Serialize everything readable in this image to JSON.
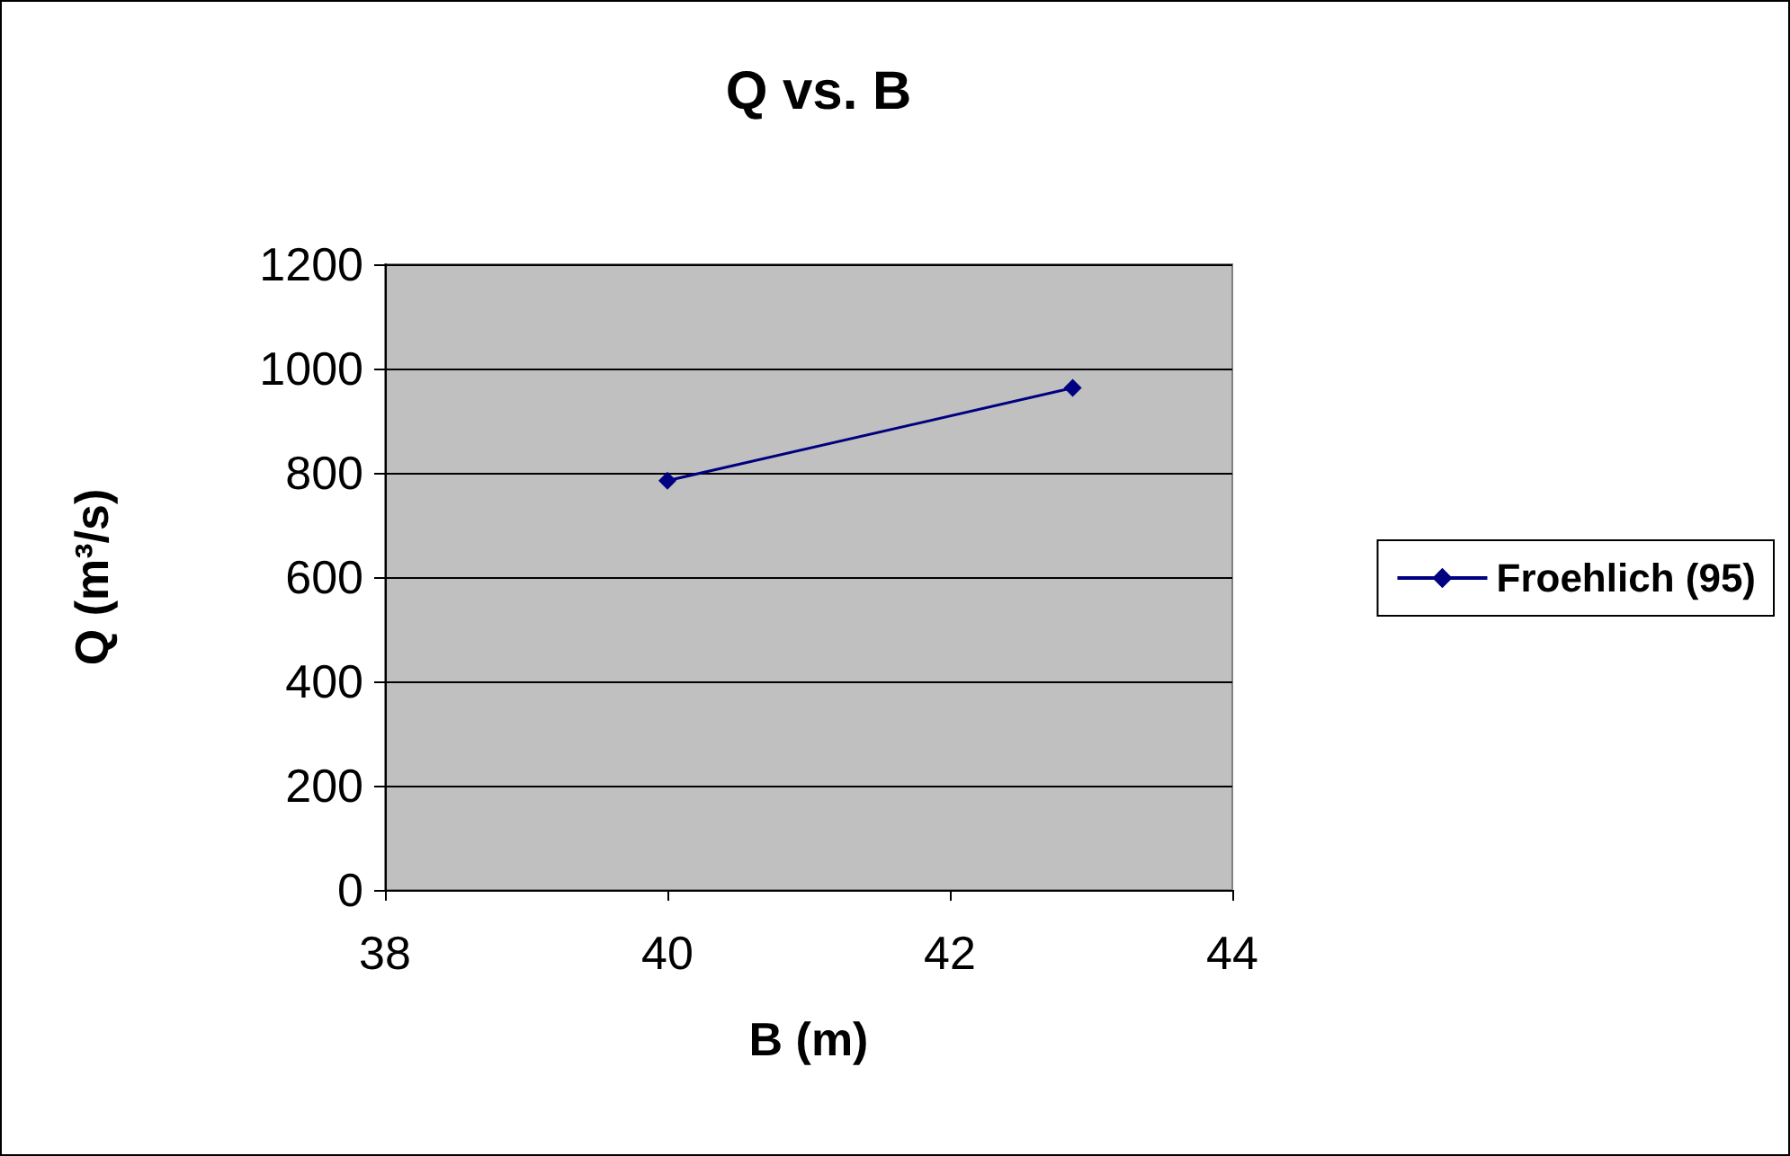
{
  "chart_data": {
    "type": "line",
    "title": "Q vs. B",
    "xlabel": "B (m)",
    "ylabel": "Q (m³/s)",
    "series": [
      {
        "name": "Froehlich (95)",
        "color": "#000080",
        "x": [
          40,
          42.87
        ],
        "values": [
          785,
          963
        ]
      }
    ],
    "xlim": [
      38,
      44
    ],
    "xticks": [
      38,
      40,
      42,
      44
    ],
    "ylim": [
      0,
      1200
    ],
    "yticks": [
      0,
      200,
      400,
      600,
      800,
      1000,
      1200
    ],
    "grid": "y",
    "legend": "right",
    "marker": "diamond",
    "line_style": "solid"
  }
}
